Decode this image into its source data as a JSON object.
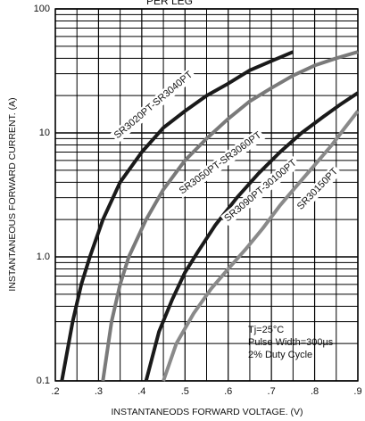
{
  "chart_data": {
    "type": "line",
    "title": "PER LEG",
    "x_label": "INSTANTANEODS FORWARD VOLTAGE. (V)",
    "y_label": "INSTANTANEOUS FORWARD CURRENT. (A)",
    "y_scale": "log",
    "grid": true,
    "xlim": [
      0.2,
      0.9
    ],
    "ylim": [
      0.1,
      100
    ],
    "xticks": [
      {
        "value": 0.2,
        "label": ".2"
      },
      {
        "value": 0.3,
        "label": ".3"
      },
      {
        "value": 0.4,
        "label": ".4"
      },
      {
        "value": 0.5,
        "label": ".5"
      },
      {
        "value": 0.6,
        "label": ".6"
      },
      {
        "value": 0.7,
        "label": ".7"
      },
      {
        "value": 0.8,
        "label": ".8"
      },
      {
        "value": 0.9,
        "label": ".9"
      }
    ],
    "yticks": [
      0.1,
      {
        "value": 1,
        "label": "1.0"
      },
      10,
      100
    ],
    "annotations": [
      "Tj=25°C",
      "Pulse Width=300µs",
      "2% Duty Cycle"
    ],
    "series": [
      {
        "name": "SR3020PT-SR3040PT",
        "color": "#1a1a1a",
        "x": [
          0.215,
          0.24,
          0.26,
          0.28,
          0.31,
          0.35,
          0.4,
          0.45,
          0.5,
          0.55,
          0.6,
          0.65,
          0.7,
          0.75
        ],
        "values": [
          0.1,
          0.3,
          0.6,
          1,
          2,
          4,
          7,
          11,
          15,
          20,
          25,
          32,
          38,
          45
        ]
      },
      {
        "name": "SR3050PT-SR3060PT",
        "color": "#7a7a7a",
        "x": [
          0.31,
          0.33,
          0.35,
          0.37,
          0.41,
          0.45,
          0.5,
          0.55,
          0.6,
          0.65,
          0.7,
          0.75,
          0.8,
          0.85,
          0.9
        ],
        "values": [
          0.1,
          0.3,
          0.6,
          1,
          2,
          3.5,
          6,
          9,
          13,
          18,
          23,
          29,
          35,
          40,
          45
        ]
      },
      {
        "name": "SR3090PT-30100PT",
        "color": "#1a1a1a",
        "x": [
          0.41,
          0.44,
          0.47,
          0.5,
          0.53,
          0.57,
          0.62,
          0.67,
          0.72,
          0.77,
          0.82,
          0.86,
          0.9
        ],
        "values": [
          0.1,
          0.25,
          0.45,
          0.75,
          1.1,
          1.8,
          3,
          4.7,
          7,
          10,
          13.5,
          17,
          21
        ]
      },
      {
        "name": "SR30150PT",
        "color": "#8a8a8a",
        "x": [
          0.45,
          0.48,
          0.52,
          0.56,
          0.6,
          0.64,
          0.68,
          0.72,
          0.76,
          0.8,
          0.84,
          0.87,
          0.9
        ],
        "values": [
          0.1,
          0.2,
          0.35,
          0.55,
          0.8,
          1.15,
          1.7,
          2.6,
          3.8,
          5.5,
          8,
          11,
          15
        ]
      }
    ]
  }
}
